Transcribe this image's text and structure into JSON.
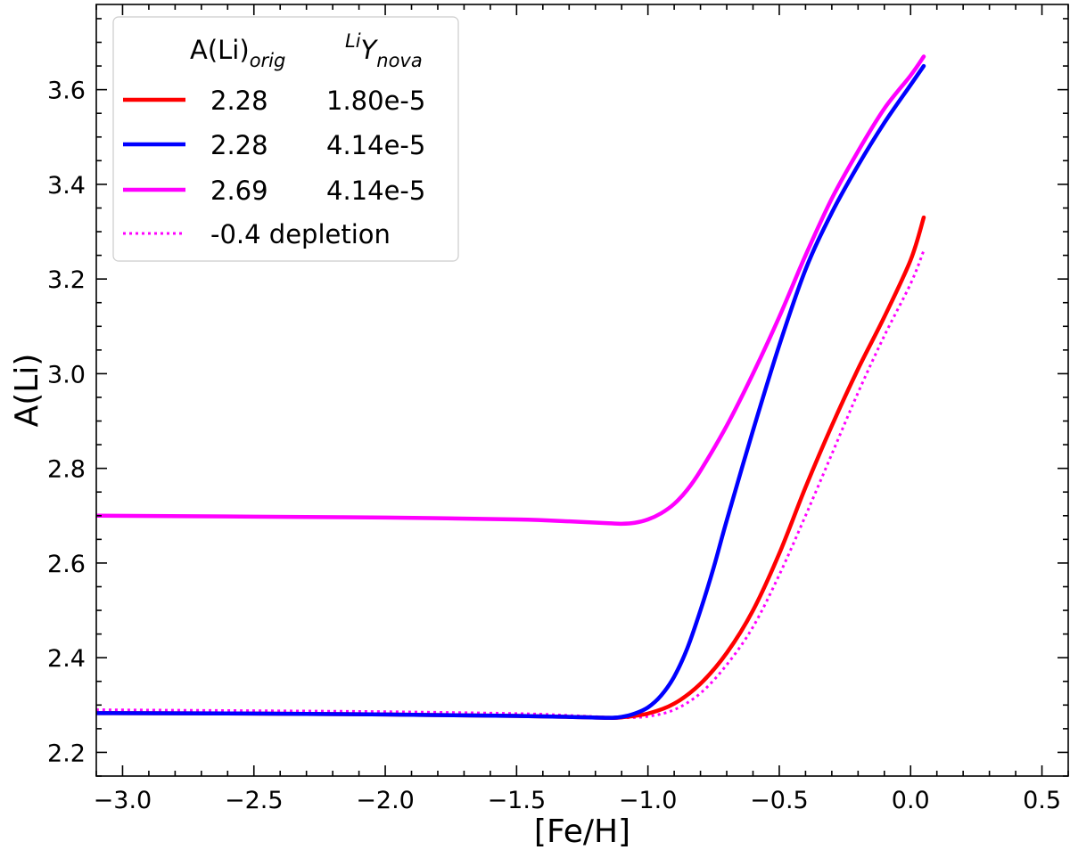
{
  "chart_data": {
    "type": "line",
    "xlabel": "[Fe/H]",
    "ylabel": "A(Li)",
    "xlim": [
      -3.1,
      0.6
    ],
    "ylim": [
      2.15,
      3.78
    ],
    "x_ticks": [
      -3.0,
      -2.5,
      -2.0,
      -1.5,
      -1.0,
      -0.5,
      0.0,
      0.5
    ],
    "x_tick_labels": [
      "−3.0",
      "−2.5",
      "−2.0",
      "−1.5",
      "−1.0",
      "−0.5",
      "0.0",
      "0.5"
    ],
    "y_ticks": [
      2.2,
      2.4,
      2.6,
      2.8,
      3.0,
      3.2,
      3.4,
      3.6
    ],
    "y_tick_labels": [
      "2.2",
      "2.4",
      "2.6",
      "2.8",
      "3.0",
      "3.2",
      "3.4",
      "3.6"
    ],
    "x_minor_step": 0.1,
    "y_minor_step": 0.05,
    "grid": false,
    "legend_position": "top-left",
    "legend": {
      "col1_header_main": "A(Li)",
      "col1_header_sub": "orig",
      "col2_header_sup": "Li",
      "col2_header_main": "Y",
      "col2_header_sub": "nova"
    },
    "series": [
      {
        "name": "2.28    1.80e-5",
        "label_col1": "2.28",
        "label_col2": "1.80e-5",
        "color": "#ff0000",
        "style": "solid",
        "x": [
          -3.1,
          -2.5,
          -2.0,
          -1.5,
          -1.3,
          -1.15,
          -1.1,
          -1.0,
          -0.9,
          -0.8,
          -0.7,
          -0.6,
          -0.5,
          -0.4,
          -0.3,
          -0.2,
          -0.1,
          0.0,
          0.05
        ],
        "y": [
          2.283,
          2.282,
          2.28,
          2.277,
          2.275,
          2.273,
          2.274,
          2.282,
          2.303,
          2.345,
          2.41,
          2.5,
          2.62,
          2.76,
          2.89,
          3.01,
          3.12,
          3.24,
          3.33
        ]
      },
      {
        "name": "2.28    4.14e-5",
        "label_col1": "2.28",
        "label_col2": "4.14e-5",
        "color": "#0000ff",
        "style": "solid",
        "x": [
          -3.1,
          -2.5,
          -2.0,
          -1.5,
          -1.3,
          -1.15,
          -1.1,
          -1.05,
          -1.0,
          -0.95,
          -0.9,
          -0.85,
          -0.8,
          -0.75,
          -0.7,
          -0.6,
          -0.5,
          -0.4,
          -0.3,
          -0.2,
          -0.1,
          0.0,
          0.05
        ],
        "y": [
          2.283,
          2.282,
          2.28,
          2.277,
          2.275,
          2.273,
          2.275,
          2.282,
          2.295,
          2.32,
          2.36,
          2.42,
          2.5,
          2.59,
          2.69,
          2.88,
          3.06,
          3.22,
          3.34,
          3.44,
          3.53,
          3.61,
          3.65
        ]
      },
      {
        "name": "2.69    4.14e-5",
        "label_col1": "2.69",
        "label_col2": "4.14e-5",
        "color": "#ff00ff",
        "style": "solid",
        "x": [
          -3.1,
          -2.5,
          -2.0,
          -1.5,
          -1.3,
          -1.15,
          -1.1,
          -1.05,
          -1.0,
          -0.95,
          -0.9,
          -0.85,
          -0.8,
          -0.7,
          -0.6,
          -0.5,
          -0.4,
          -0.3,
          -0.2,
          -0.1,
          0.0,
          0.05
        ],
        "y": [
          2.7,
          2.698,
          2.696,
          2.692,
          2.688,
          2.684,
          2.683,
          2.685,
          2.692,
          2.705,
          2.725,
          2.755,
          2.795,
          2.89,
          3.0,
          3.12,
          3.25,
          3.37,
          3.47,
          3.56,
          3.63,
          3.67
        ]
      },
      {
        "name": "-0.4 depletion",
        "label_col1": "-0.4 depletion",
        "label_col2": "",
        "color": "#ff00ff",
        "style": "dotted",
        "x": [
          -3.1,
          -2.5,
          -2.0,
          -1.5,
          -1.3,
          -1.15,
          -1.1,
          -1.0,
          -0.9,
          -0.8,
          -0.7,
          -0.6,
          -0.5,
          -0.4,
          -0.3,
          -0.2,
          -0.1,
          0.0,
          0.05
        ],
        "y": [
          2.29,
          2.288,
          2.286,
          2.282,
          2.278,
          2.274,
          2.273,
          2.276,
          2.29,
          2.325,
          2.385,
          2.465,
          2.575,
          2.7,
          2.83,
          2.96,
          3.08,
          3.19,
          3.26
        ]
      }
    ]
  }
}
